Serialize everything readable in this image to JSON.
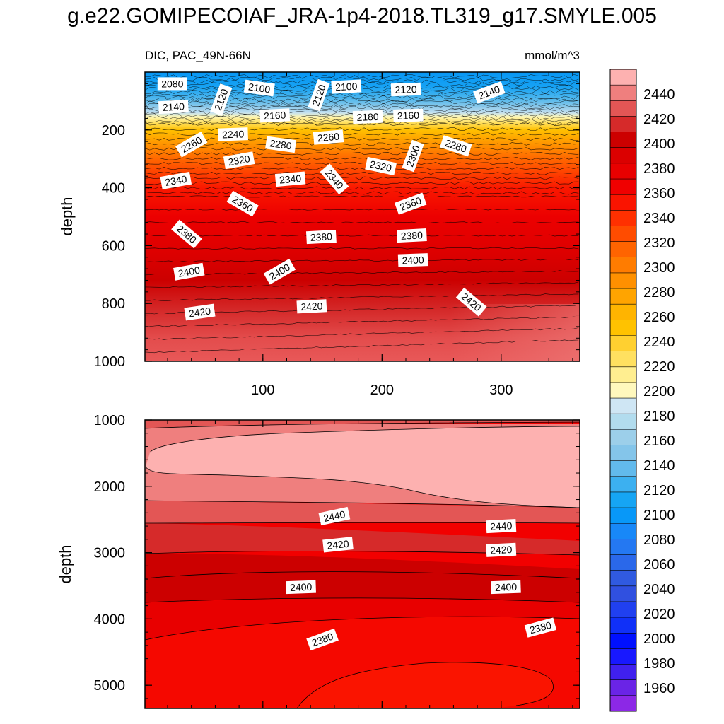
{
  "title": "g.e22.GOMIPECOIAF_JRA-1p4-2018.TL319_g17.SMYLE.005",
  "colorbar": {
    "labels": [
      "2440",
      "2420",
      "2400",
      "2380",
      "2360",
      "2340",
      "2320",
      "2300",
      "2280",
      "2260",
      "2240",
      "2220",
      "2200",
      "2180",
      "2160",
      "2140",
      "2120",
      "2100",
      "2080",
      "2060",
      "2040",
      "2020",
      "2000",
      "1980",
      "1960"
    ],
    "colors": [
      "#fdb1b0",
      "#ef7f7e",
      "#e35655",
      "#d62a2a",
      "#cc0000",
      "#db0000",
      "#e80000",
      "#f00000",
      "#fa1400",
      "#ff3000",
      "#ff4c00",
      "#ff6400",
      "#ff7c00",
      "#ff9000",
      "#ffa400",
      "#ffb400",
      "#ffc200",
      "#ffd030",
      "#ffe060",
      "#ffee90",
      "#fff8bd",
      "#cfe6f4",
      "#b2dcee",
      "#9ccfea",
      "#84c5ea",
      "#62baec",
      "#3cb0f0",
      "#16a5f4",
      "#0898f8",
      "#1888f8",
      "#2478f2",
      "#2a68ea",
      "#305ae0",
      "#3050e0",
      "#2040f0",
      "#1030f8",
      "#0010ff",
      "#1818ff",
      "#4020ee",
      "#6a24e6",
      "#8c28e6"
    ]
  },
  "chart_data": [
    {
      "type": "heatmap",
      "subtitle_left": "DIC, PAC_49N-66N",
      "subtitle_right": "mmol/m^3",
      "ylabel": "depth",
      "xlabel": "",
      "xlim": [
        1,
        366
      ],
      "ylim": [
        1000,
        0
      ],
      "x_ticks": [
        "100",
        "200",
        "300"
      ],
      "x_tick_values": [
        100,
        200,
        300
      ],
      "y_ticks": [
        "200",
        "400",
        "600",
        "800",
        "1000"
      ],
      "y_tick_values": [
        200,
        400,
        600,
        800,
        1000
      ],
      "depth_profile": [
        {
          "depth": 0,
          "value": 2080
        },
        {
          "depth": 40,
          "value": 2110
        },
        {
          "depth": 90,
          "value": 2140
        },
        {
          "depth": 140,
          "value": 2175
        },
        {
          "depth": 180,
          "value": 2220
        },
        {
          "depth": 230,
          "value": 2270
        },
        {
          "depth": 300,
          "value": 2320
        },
        {
          "depth": 380,
          "value": 2350
        },
        {
          "depth": 480,
          "value": 2370
        },
        {
          "depth": 600,
          "value": 2385
        },
        {
          "depth": 700,
          "value": 2400
        },
        {
          "depth": 800,
          "value": 2415
        },
        {
          "depth": 900,
          "value": 2425
        },
        {
          "depth": 1000,
          "value": 2435
        }
      ],
      "contour_labels": [
        {
          "text": "2080",
          "x": 24,
          "depth": 40,
          "angle": 0
        },
        {
          "text": "2120",
          "x": 65,
          "depth": 95,
          "angle": -70
        },
        {
          "text": "2100",
          "x": 97,
          "depth": 55,
          "angle": 8
        },
        {
          "text": "2120",
          "x": 147,
          "depth": 80,
          "angle": -70
        },
        {
          "text": "2100",
          "x": 170,
          "depth": 50,
          "angle": -3
        },
        {
          "text": "2120",
          "x": 220,
          "depth": 60,
          "angle": -2
        },
        {
          "text": "2140",
          "x": 290,
          "depth": 70,
          "angle": -20
        },
        {
          "text": "2140",
          "x": 25,
          "depth": 120,
          "angle": -3
        },
        {
          "text": "2160",
          "x": 110,
          "depth": 150,
          "angle": -3
        },
        {
          "text": "2180",
          "x": 188,
          "depth": 155,
          "angle": -2
        },
        {
          "text": "2160",
          "x": 222,
          "depth": 150,
          "angle": -2
        },
        {
          "text": "2240",
          "x": 75,
          "depth": 215,
          "angle": -2
        },
        {
          "text": "2260",
          "x": 40,
          "depth": 250,
          "angle": -30
        },
        {
          "text": "2280",
          "x": 115,
          "depth": 250,
          "angle": 8
        },
        {
          "text": "2260",
          "x": 155,
          "depth": 225,
          "angle": -5
        },
        {
          "text": "2300",
          "x": 226,
          "depth": 290,
          "angle": -70
        },
        {
          "text": "2280",
          "x": 262,
          "depth": 255,
          "angle": 18
        },
        {
          "text": "2320",
          "x": 80,
          "depth": 305,
          "angle": -10
        },
        {
          "text": "2340",
          "x": 27,
          "depth": 375,
          "angle": -10
        },
        {
          "text": "2340",
          "x": 123,
          "depth": 370,
          "angle": -5
        },
        {
          "text": "2340",
          "x": 160,
          "depth": 370,
          "angle": 50
        },
        {
          "text": "2320",
          "x": 199,
          "depth": 325,
          "angle": 12
        },
        {
          "text": "2360",
          "x": 83,
          "depth": 455,
          "angle": 30
        },
        {
          "text": "2360",
          "x": 224,
          "depth": 455,
          "angle": -20
        },
        {
          "text": "2380",
          "x": 36,
          "depth": 560,
          "angle": 40
        },
        {
          "text": "2380",
          "x": 149,
          "depth": 570,
          "angle": -3
        },
        {
          "text": "2380",
          "x": 225,
          "depth": 565,
          "angle": -3
        },
        {
          "text": "2400",
          "x": 38,
          "depth": 690,
          "angle": -10
        },
        {
          "text": "2400",
          "x": 114,
          "depth": 690,
          "angle": -30
        },
        {
          "text": "2400",
          "x": 226,
          "depth": 650,
          "angle": -2
        },
        {
          "text": "2420",
          "x": 47,
          "depth": 830,
          "angle": -8
        },
        {
          "text": "2420",
          "x": 141,
          "depth": 810,
          "angle": -3
        },
        {
          "text": "2420",
          "x": 275,
          "depth": 795,
          "angle": 40
        }
      ]
    },
    {
      "type": "heatmap",
      "ylabel": "depth",
      "xlim": [
        1,
        366
      ],
      "ylim": [
        5350,
        1000
      ],
      "y_ticks": [
        "1000",
        "2000",
        "3000",
        "4000",
        "5000"
      ],
      "y_tick_values": [
        1000,
        2000,
        3000,
        4000,
        5000
      ],
      "contour_labels": [
        {
          "text": "2440",
          "x": 160,
          "depth": 2450,
          "angle": -12
        },
        {
          "text": "2440",
          "x": 300,
          "depth": 2600,
          "angle": -3
        },
        {
          "text": "2420",
          "x": 163,
          "depth": 2880,
          "angle": -6
        },
        {
          "text": "2420",
          "x": 300,
          "depth": 2960,
          "angle": -3
        },
        {
          "text": "2400",
          "x": 132,
          "depth": 3520,
          "angle": -2
        },
        {
          "text": "2400",
          "x": 304,
          "depth": 3520,
          "angle": -2
        },
        {
          "text": "2380",
          "x": 150,
          "depth": 4310,
          "angle": -20
        },
        {
          "text": "2380",
          "x": 333,
          "depth": 4130,
          "angle": -15
        }
      ]
    }
  ]
}
